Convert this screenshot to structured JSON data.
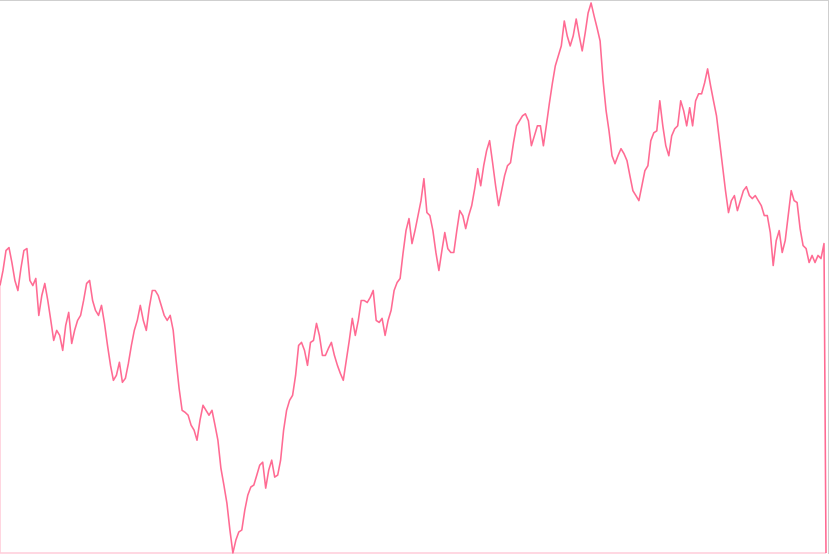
{
  "chart_data": {
    "type": "area",
    "title": "",
    "xlabel": "",
    "ylabel": "",
    "grid": false,
    "legend": "none",
    "ylim": [
      0,
      553
    ],
    "line_color": "#ff6b93",
    "series": [
      {
        "values": [
          268,
          283,
          303,
          306,
          291,
          273,
          263,
          285,
          303,
          305,
          273,
          268,
          275,
          238,
          258,
          270,
          253,
          233,
          213,
          223,
          218,
          203,
          228,
          241,
          210,
          223,
          233,
          238,
          253,
          270,
          273,
          253,
          243,
          238,
          248,
          230,
          208,
          188,
          173,
          178,
          191,
          171,
          175,
          190,
          208,
          223,
          233,
          248,
          233,
          223,
          246,
          263,
          263,
          258,
          248,
          238,
          233,
          238,
          223,
          193,
          165,
          143,
          141,
          138,
          128,
          123,
          113,
          133,
          148,
          143,
          138,
          143,
          128,
          113,
          85,
          68,
          50,
          23,
          0,
          13,
          21,
          23,
          43,
          58,
          66,
          68,
          78,
          88,
          91,
          65,
          83,
          93,
          76,
          78,
          93,
          123,
          143,
          153,
          158,
          178,
          208,
          211,
          203,
          188,
          211,
          213,
          230,
          218,
          198,
          198,
          205,
          211,
          198,
          188,
          180,
          173,
          193,
          213,
          235,
          218,
          233,
          253,
          253,
          251,
          256,
          263,
          233,
          231,
          235,
          218,
          233,
          243,
          263,
          271,
          275,
          300,
          323,
          335,
          310,
          323,
          338,
          353,
          375,
          341,
          338,
          323,
          301,
          283,
          303,
          321,
          305,
          301,
          301,
          323,
          343,
          338,
          325,
          338,
          348,
          365,
          385,
          368,
          388,
          403,
          413,
          391,
          368,
          348,
          363,
          378,
          388,
          391,
          411,
          428,
          433,
          438,
          440,
          433,
          408,
          418,
          428,
          428,
          408,
          428,
          450,
          470,
          488,
          498,
          508,
          533,
          518,
          508,
          518,
          535,
          518,
          503,
          521,
          541,
          551,
          538,
          526,
          513,
          473,
          443,
          423,
          398,
          390,
          398,
          405,
          400,
          393,
          378,
          363,
          358,
          353,
          368,
          383,
          388,
          413,
          421,
          423,
          453,
          428,
          408,
          398,
          418,
          425,
          428,
          453,
          443,
          428,
          446,
          428,
          453,
          460,
          460,
          471,
          485,
          468,
          453,
          438,
          413,
          388,
          363,
          341,
          353,
          358,
          343,
          353,
          363,
          367,
          358,
          355,
          358,
          353,
          348,
          338,
          338,
          321,
          288,
          313,
          323,
          301,
          313,
          338,
          363,
          353,
          351,
          325,
          308,
          305,
          291,
          298,
          291,
          298,
          295,
          310
        ]
      }
    ]
  }
}
